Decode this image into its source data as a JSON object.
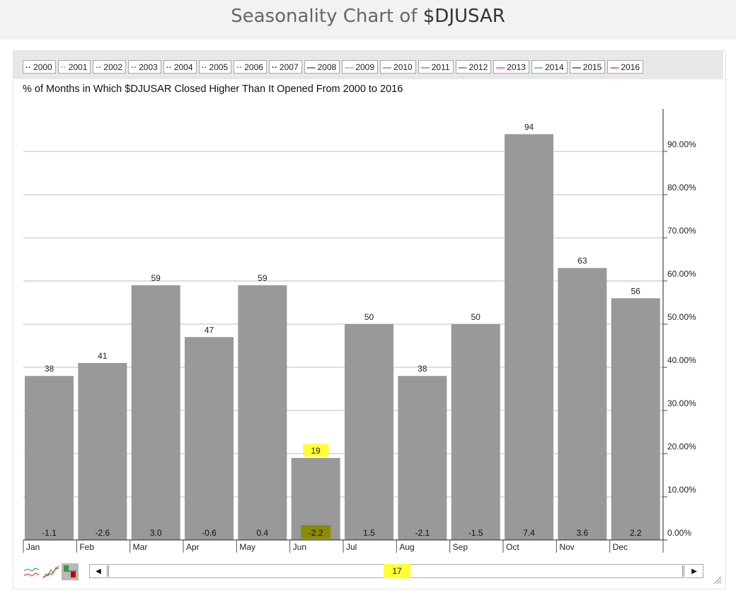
{
  "header": {
    "title_prefix": "Seasonality Chart of ",
    "symbol": "$DJUSAR"
  },
  "legend": [
    {
      "label": "2000",
      "color": "#8b1a1a",
      "style": "dotted"
    },
    {
      "label": "2001",
      "color": "#ff7f27",
      "style": "dotted"
    },
    {
      "label": "2002",
      "color": "#a349a4",
      "style": "dotted"
    },
    {
      "label": "2003",
      "color": "#1a8ba6",
      "style": "dotted"
    },
    {
      "label": "2004",
      "color": "#555555",
      "style": "dotted"
    },
    {
      "label": "2005",
      "color": "#ff00ff",
      "style": "dotted"
    },
    {
      "label": "2006",
      "color": "#22b14c",
      "style": "dotted"
    },
    {
      "label": "2007",
      "color": "#1a1a8b",
      "style": "dotted"
    },
    {
      "label": "2008",
      "color": "#8b1a1a",
      "style": "solid"
    },
    {
      "label": "2009",
      "color": "#ff7f27",
      "style": "solid"
    },
    {
      "label": "2010",
      "color": "#a349a4",
      "style": "solid"
    },
    {
      "label": "2011",
      "color": "#1a8ba6",
      "style": "solid"
    },
    {
      "label": "2012",
      "color": "#555555",
      "style": "solid"
    },
    {
      "label": "2013",
      "color": "#ff00ff",
      "style": "solid"
    },
    {
      "label": "2014",
      "color": "#22b14c",
      "style": "solid"
    },
    {
      "label": "2015",
      "color": "#1a1a8b",
      "style": "solid"
    },
    {
      "label": "2016",
      "color": "#e41a1c",
      "style": "solid"
    }
  ],
  "chart_data": {
    "type": "bar",
    "title": "% of Months in Which $DJUSAR Closed Higher Than It Opened From 2000 to 2016",
    "categories": [
      "Jan",
      "Feb",
      "Mar",
      "Apr",
      "May",
      "Jun",
      "Jul",
      "Aug",
      "Sep",
      "Oct",
      "Nov",
      "Dec"
    ],
    "values": [
      38,
      41,
      59,
      47,
      59,
      19,
      50,
      38,
      50,
      94,
      63,
      56
    ],
    "avg_change_labels": [
      "-1.1",
      "-2.6",
      "3.0",
      "-0.6",
      "0.4",
      "-2.2",
      "1.5",
      "-2.1",
      "-1.5",
      "7.4",
      "3.6",
      "2.2"
    ],
    "highlighted_category": "Jun",
    "ylim": [
      0,
      100
    ],
    "y_ticks": [
      0,
      10,
      20,
      30,
      40,
      50,
      60,
      70,
      80,
      90
    ],
    "y_tick_labels": [
      "0.00%",
      "10.00%",
      "20.00%",
      "30.00%",
      "40.00%",
      "50.00%",
      "60.00%",
      "70.00%",
      "80.00%",
      "90.00%"
    ],
    "y_axis_position": "right",
    "grid": true,
    "bar_color": "#999999",
    "highlight_color": "#ffff33"
  },
  "scrollbar": {
    "value_label": "17"
  }
}
